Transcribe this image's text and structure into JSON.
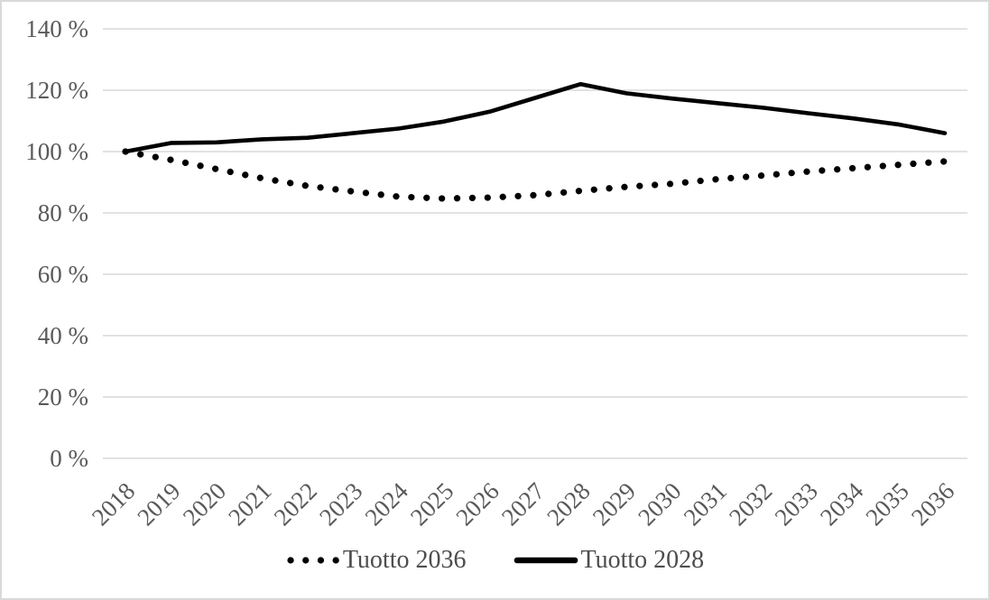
{
  "figure": {
    "background": "#ffffff",
    "border_color": "#d9d9d9"
  },
  "chart_data": {
    "type": "line",
    "title": "",
    "x_categories": [
      "2018",
      "2019",
      "2020",
      "2021",
      "2022",
      "2023",
      "2024",
      "2025",
      "2026",
      "2027",
      "2028",
      "2029",
      "2030",
      "2031",
      "2032",
      "2033",
      "2034",
      "2035",
      "2036"
    ],
    "y_axis": {
      "ticks": [
        0,
        20,
        40,
        60,
        80,
        100,
        120,
        140
      ],
      "tick_suffix": " %",
      "min": 0,
      "max": 140
    },
    "grid": "horizontal-only",
    "gridline_color": "#d9d9d9",
    "axis_label_color": "#595959",
    "series": [
      {
        "name": "Tuotto 2036",
        "style": "dotted",
        "color": "#000000",
        "values": [
          100,
          97.3,
          94.3,
          91.3,
          88.8,
          87.0,
          85.3,
          84.7,
          85.0,
          85.8,
          87.2,
          88.5,
          89.5,
          91.0,
          92.2,
          93.5,
          94.6,
          95.7,
          96.8
        ]
      },
      {
        "name": "Tuotto 2028",
        "style": "solid",
        "color": "#000000",
        "values": [
          100,
          102.8,
          103.0,
          104.0,
          104.5,
          106.0,
          107.5,
          109.8,
          113.0,
          117.5,
          122.0,
          119.0,
          117.3,
          115.8,
          114.3,
          112.5,
          110.8,
          108.8,
          106.0
        ]
      }
    ],
    "legend": {
      "position": "bottom",
      "items": [
        "Tuotto 2036",
        "Tuotto 2028"
      ]
    }
  }
}
